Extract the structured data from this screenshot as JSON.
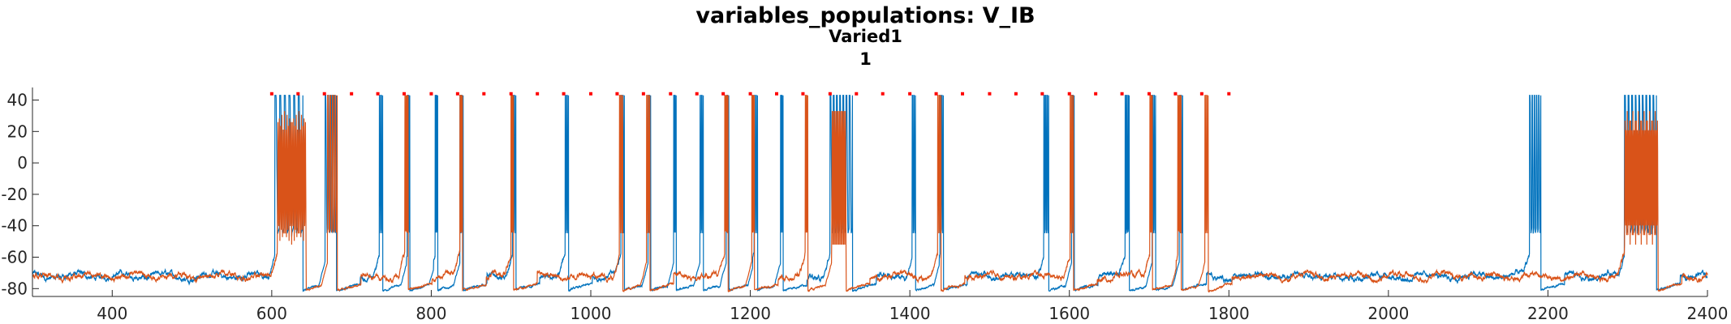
{
  "chart_data": {
    "type": "line",
    "title": "variables_populations: V_IB",
    "subtitle": "Varied1",
    "subtitle2": "1",
    "xlim": [
      300,
      2400
    ],
    "ylim": [
      -85,
      48
    ],
    "xticks": [
      400,
      600,
      800,
      1000,
      1200,
      1400,
      1600,
      1800,
      2000,
      2200,
      2400
    ],
    "yticks": [
      40,
      20,
      0,
      -20,
      -40,
      -60,
      -80
    ],
    "grid": false,
    "legend": "none",
    "colors": {
      "series1": "#0072BD",
      "series2": "#D95319",
      "markers": "#FF0000"
    },
    "baseline_mV": -72,
    "trough_mV": -81,
    "burst_high_mV": 43,
    "burst_low_mV": -52,
    "marker_y": 44,
    "marker_x": [
      600,
      633,
      666,
      700,
      733,
      766,
      800,
      833,
      866,
      900,
      933,
      966,
      1000,
      1033,
      1066,
      1100,
      1133,
      1166,
      1200,
      1233,
      1266,
      1300,
      1333,
      1366,
      1400,
      1433,
      1466,
      1500,
      1533,
      1566,
      1600,
      1633,
      1666,
      1700,
      1733,
      1766,
      1800
    ],
    "series": [
      {
        "color": "#0072BD",
        "events": [
          {
            "t": 604,
            "dur": 35,
            "n": 6,
            "kind": "burst"
          },
          {
            "t": 667,
            "dur": 14,
            "n": 4,
            "kind": "burst"
          },
          {
            "t": 735,
            "dur": 4,
            "n": 2,
            "kind": "spike"
          },
          {
            "t": 770,
            "dur": 3,
            "n": 2,
            "kind": "spike"
          },
          {
            "t": 805,
            "dur": 3,
            "n": 2,
            "kind": "spike"
          },
          {
            "t": 836,
            "dur": 4,
            "n": 2,
            "kind": "spike"
          },
          {
            "t": 902,
            "dur": 4,
            "n": 2,
            "kind": "spike"
          },
          {
            "t": 968,
            "dur": 4,
            "n": 2,
            "kind": "spike"
          },
          {
            "t": 1038,
            "dur": 4,
            "n": 2,
            "kind": "spike"
          },
          {
            "t": 1072,
            "dur": 3,
            "n": 2,
            "kind": "spike"
          },
          {
            "t": 1104,
            "dur": 3,
            "n": 2,
            "kind": "spike"
          },
          {
            "t": 1137,
            "dur": 4,
            "n": 2,
            "kind": "spike"
          },
          {
            "t": 1170,
            "dur": 3,
            "n": 2,
            "kind": "spike"
          },
          {
            "t": 1205,
            "dur": 4,
            "n": 2,
            "kind": "spike"
          },
          {
            "t": 1238,
            "dur": 3,
            "n": 2,
            "kind": "spike"
          },
          {
            "t": 1300,
            "dur": 28,
            "n": 7,
            "kind": "burst"
          },
          {
            "t": 1403,
            "dur": 4,
            "n": 2,
            "kind": "spike"
          },
          {
            "t": 1438,
            "dur": 4,
            "n": 2,
            "kind": "spike"
          },
          {
            "t": 1568,
            "dur": 6,
            "n": 3,
            "kind": "spike"
          },
          {
            "t": 1603,
            "dur": 3,
            "n": 2,
            "kind": "spike"
          },
          {
            "t": 1670,
            "dur": 5,
            "n": 3,
            "kind": "spike"
          },
          {
            "t": 1704,
            "dur": 4,
            "n": 2,
            "kind": "spike"
          },
          {
            "t": 1738,
            "dur": 4,
            "n": 2,
            "kind": "spike"
          },
          {
            "t": 2177,
            "dur": 14,
            "n": 5,
            "kind": "burst"
          },
          {
            "t": 2296,
            "dur": 40,
            "n": 9,
            "kind": "burst"
          }
        ]
      },
      {
        "color": "#D95319",
        "events": [
          {
            "t": 607,
            "dur": 36,
            "n": 22,
            "kind": "dense"
          },
          {
            "t": 670,
            "dur": 12,
            "n": 4,
            "kind": "burst"
          },
          {
            "t": 767,
            "dur": 4,
            "n": 3,
            "kind": "spike"
          },
          {
            "t": 836,
            "dur": 3,
            "n": 2,
            "kind": "spike"
          },
          {
            "t": 900,
            "dur": 3,
            "n": 2,
            "kind": "spike"
          },
          {
            "t": 1036,
            "dur": 4,
            "n": 2,
            "kind": "spike"
          },
          {
            "t": 1070,
            "dur": 4,
            "n": 2,
            "kind": "spike"
          },
          {
            "t": 1168,
            "dur": 4,
            "n": 3,
            "kind": "spike"
          },
          {
            "t": 1202,
            "dur": 3,
            "n": 2,
            "kind": "spike"
          },
          {
            "t": 1269,
            "dur": 3,
            "n": 2,
            "kind": "spike"
          },
          {
            "t": 1302,
            "dur": 18,
            "n": 12,
            "kind": "dense"
          },
          {
            "t": 1435,
            "dur": 4,
            "n": 2,
            "kind": "spike"
          },
          {
            "t": 1601,
            "dur": 4,
            "n": 2,
            "kind": "spike"
          },
          {
            "t": 1701,
            "dur": 3,
            "n": 2,
            "kind": "spike"
          },
          {
            "t": 1736,
            "dur": 4,
            "n": 3,
            "kind": "spike"
          },
          {
            "t": 1770,
            "dur": 4,
            "n": 2,
            "kind": "spike"
          },
          {
            "t": 2296,
            "dur": 42,
            "n": 30,
            "kind": "dense"
          }
        ]
      }
    ]
  }
}
